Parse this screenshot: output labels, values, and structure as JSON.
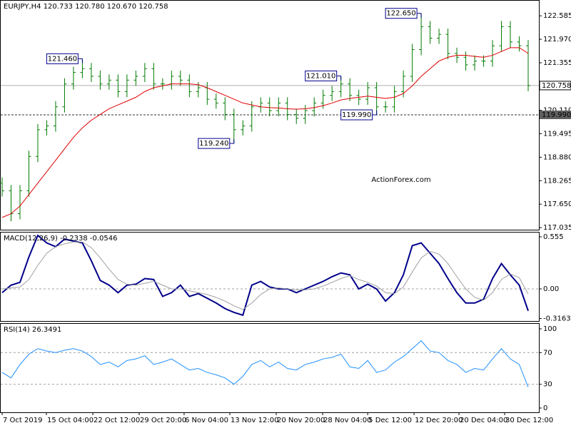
{
  "chart_data": [
    {
      "type": "ohlc",
      "title": "EURJPY,H4  120.733 120.780 120.670 120.758",
      "watermark": "ActionForex.com",
      "xlim": [
        -0.24,
        60.2
      ],
      "ylim": [
        116.98,
        123.0
      ],
      "yticks": [
        122.585,
        {
          "value": 121.97,
          "label": "121.970"
        },
        121.355,
        {
          "value": 120.11,
          "label": "120.110"
        },
        119.495,
        {
          "value": 118.88,
          "label": "118.880"
        },
        118.265,
        {
          "value": 117.65,
          "label": "117.650"
        },
        117.035
      ],
      "color": "#007a00",
      "open": [
        118.2,
        118.0,
        117.4,
        118.0,
        118.9,
        119.6,
        119.7,
        120.2,
        120.8,
        121.1,
        121.2,
        121.0,
        120.8,
        120.9,
        120.6,
        120.9,
        121.0,
        121.2,
        120.8,
        120.8,
        121.0,
        120.9,
        120.6,
        120.7,
        120.4,
        120.3,
        120.0,
        119.6,
        119.7,
        120.2,
        120.3,
        120.1,
        120.3,
        120.0,
        119.9,
        120.1,
        120.3,
        120.5,
        120.6,
        120.8,
        120.5,
        120.4,
        120.7,
        120.2,
        120.2,
        120.6,
        121.0,
        121.7,
        122.3,
        122.0,
        122.1,
        121.6,
        121.5,
        121.3,
        121.4,
        121.4,
        121.8,
        122.3,
        121.9,
        121.8
      ],
      "high": [
        118.35,
        118.15,
        118.15,
        119.05,
        119.75,
        119.85,
        120.35,
        120.95,
        121.25,
        121.46,
        121.35,
        121.15,
        121.05,
        121.05,
        121.05,
        121.15,
        121.35,
        121.35,
        120.95,
        121.15,
        121.15,
        121.05,
        120.85,
        120.85,
        120.55,
        120.45,
        120.15,
        119.85,
        120.35,
        120.45,
        120.45,
        120.45,
        120.45,
        120.15,
        120.25,
        120.45,
        120.65,
        120.75,
        121.01,
        120.95,
        120.65,
        120.85,
        120.85,
        120.35,
        120.75,
        121.15,
        121.85,
        122.65,
        122.45,
        122.25,
        122.25,
        121.75,
        121.65,
        121.55,
        121.55,
        121.95,
        122.45,
        122.45,
        122.05,
        121.95
      ],
      "low": [
        117.85,
        117.2,
        117.25,
        117.85,
        118.75,
        119.45,
        119.55,
        120.05,
        120.65,
        120.95,
        120.85,
        120.65,
        120.65,
        120.45,
        120.45,
        120.75,
        120.85,
        120.65,
        120.65,
        120.65,
        120.75,
        120.45,
        120.45,
        120.25,
        120.15,
        119.85,
        119.24,
        119.45,
        119.55,
        120.05,
        119.95,
        119.95,
        119.85,
        119.75,
        119.75,
        119.95,
        120.15,
        120.35,
        120.45,
        120.35,
        120.25,
        120.25,
        119.99,
        120.05,
        120.05,
        120.45,
        120.85,
        121.55,
        121.85,
        121.85,
        121.45,
        121.35,
        121.15,
        121.15,
        121.25,
        121.25,
        121.65,
        121.75,
        121.65,
        120.61
      ],
      "close": [
        118.0,
        117.4,
        118.0,
        118.9,
        119.6,
        119.7,
        120.2,
        120.8,
        121.1,
        121.2,
        121.0,
        120.8,
        120.9,
        120.6,
        120.9,
        121.0,
        121.2,
        120.8,
        120.8,
        121.0,
        120.9,
        120.6,
        120.7,
        120.4,
        120.3,
        120.0,
        119.6,
        119.7,
        120.2,
        120.3,
        120.1,
        120.3,
        120.0,
        119.9,
        120.1,
        120.3,
        120.5,
        120.6,
        120.8,
        120.5,
        120.4,
        120.7,
        120.2,
        120.2,
        120.6,
        121.0,
        121.7,
        122.3,
        122.0,
        122.1,
        121.6,
        121.5,
        121.3,
        121.4,
        121.4,
        121.8,
        122.3,
        121.9,
        121.8,
        120.758
      ],
      "overlay": {
        "color": "#e00000",
        "values": [
          117.3,
          117.4,
          117.6,
          117.9,
          118.2,
          118.5,
          118.8,
          119.1,
          119.4,
          119.65,
          119.85,
          120.0,
          120.15,
          120.25,
          120.35,
          120.45,
          120.6,
          120.7,
          120.75,
          120.8,
          120.8,
          120.8,
          120.78,
          120.7,
          120.6,
          120.5,
          120.4,
          120.3,
          120.25,
          120.2,
          120.18,
          120.17,
          120.15,
          120.14,
          120.15,
          120.18,
          120.23,
          120.3,
          120.38,
          120.42,
          120.45,
          120.48,
          120.45,
          120.42,
          120.45,
          120.55,
          120.75,
          121.0,
          121.2,
          121.4,
          121.5,
          121.55,
          121.55,
          121.52,
          121.5,
          121.55,
          121.65,
          121.75,
          121.75,
          121.6
        ]
      },
      "reference_lines": [
        {
          "value": 119.99,
          "label": "119.990"
        }
      ],
      "last_price": {
        "value": 120.758,
        "label": "120.758"
      },
      "annotations": [
        {
          "x": 9,
          "value": 121.46,
          "label": "121.460"
        },
        {
          "x": 26,
          "value": 119.24,
          "label": "119.240"
        },
        {
          "x": 38,
          "value": 121.01,
          "label": "121.010"
        },
        {
          "x": 42,
          "value": 119.99,
          "label": "119.990"
        },
        {
          "x": 47,
          "value": 122.65,
          "label": "122.650"
        }
      ]
    },
    {
      "type": "line",
      "title": "MACD(12,26,9) -0.2338 -0.0546",
      "xlim": [
        -0.24,
        60.2
      ],
      "ylim": [
        -0.342,
        0.608
      ],
      "yticks": [
        0.555,
        {
          "value": 0,
          "label": "0.00"
        },
        -0.3163
      ],
      "level_lines": [
        0
      ],
      "series": [
        {
          "color": "#00008b",
          "width": 2,
          "values": [
            -0.04,
            0.04,
            0.07,
            0.34,
            0.57,
            0.49,
            0.45,
            0.53,
            0.51,
            0.49,
            0.3,
            0.09,
            0.04,
            -0.04,
            0.04,
            0.05,
            0.11,
            0.1,
            -0.08,
            -0.04,
            0.04,
            -0.08,
            -0.05,
            -0.1,
            -0.15,
            -0.21,
            -0.25,
            -0.28,
            0.04,
            0.08,
            0.02,
            0.0,
            0.0,
            -0.04,
            0.0,
            0.04,
            0.08,
            0.13,
            0.17,
            0.15,
            0.0,
            0.05,
            0.0,
            -0.13,
            -0.04,
            0.15,
            0.46,
            0.49,
            0.38,
            0.27,
            0.11,
            -0.04,
            -0.15,
            -0.15,
            -0.11,
            0.11,
            0.27,
            0.15,
            0.04,
            -0.2338
          ]
        },
        {
          "color": "#a0a0a0",
          "width": 1,
          "values": [
            0.0,
            0.01,
            0.02,
            0.1,
            0.25,
            0.38,
            0.45,
            0.48,
            0.5,
            0.5,
            0.44,
            0.33,
            0.21,
            0.1,
            0.05,
            0.04,
            0.06,
            0.08,
            0.04,
            0.0,
            0.0,
            -0.02,
            -0.04,
            -0.06,
            -0.09,
            -0.13,
            -0.18,
            -0.22,
            -0.15,
            -0.06,
            0.0,
            0.01,
            0.0,
            -0.01,
            -0.01,
            0.0,
            0.03,
            0.07,
            0.11,
            0.14,
            0.1,
            0.07,
            0.03,
            -0.04,
            -0.05,
            0.02,
            0.18,
            0.33,
            0.4,
            0.37,
            0.27,
            0.13,
            0.0,
            -0.09,
            -0.12,
            -0.04,
            0.1,
            0.16,
            0.12,
            -0.0546
          ]
        }
      ]
    },
    {
      "type": "line",
      "title": "RSI(14) 26.3491",
      "xlim": [
        -0.24,
        60.2
      ],
      "ylim": [
        -5.4,
        107.2
      ],
      "yticks": [
        100,
        70,
        30,
        0
      ],
      "level_lines": [
        70,
        30
      ],
      "series": [
        {
          "color": "#1e90ff",
          "width": 1,
          "values": [
            45,
            38,
            55,
            68,
            75,
            72,
            70,
            73,
            75,
            72,
            65,
            55,
            58,
            52,
            60,
            62,
            66,
            55,
            58,
            62,
            55,
            48,
            50,
            45,
            42,
            38,
            30,
            40,
            55,
            60,
            52,
            58,
            50,
            48,
            55,
            58,
            62,
            64,
            68,
            52,
            50,
            60,
            45,
            48,
            58,
            65,
            75,
            85,
            72,
            70,
            60,
            55,
            45,
            50,
            48,
            62,
            75,
            62,
            55,
            26.3491
          ]
        }
      ],
      "xticks": [
        {
          "value": 0,
          "label": "7 Oct 2019"
        },
        {
          "value": 4.96,
          "label": "15 Oct 04:00"
        },
        {
          "value": 10.17,
          "label": "22 Oct 12:00"
        },
        {
          "value": 15.37,
          "label": "29 Oct 20:00"
        },
        {
          "value": 20.41,
          "label": "6 Nov 04:00"
        },
        {
          "value": 25.54,
          "label": "13 Nov 12:00"
        },
        {
          "value": 30.74,
          "label": "20 Nov 20:00"
        },
        {
          "value": 35.95,
          "label": "28 Nov 04:00"
        },
        {
          "value": 41.0,
          "label": "5 Dec 12:00"
        },
        {
          "value": 46.2,
          "label": "12 Dec 20:00"
        },
        {
          "value": 51.24,
          "label": "20 Dec 04:00"
        },
        {
          "value": 56.36,
          "label": "30 Dec 12:00"
        }
      ]
    }
  ]
}
